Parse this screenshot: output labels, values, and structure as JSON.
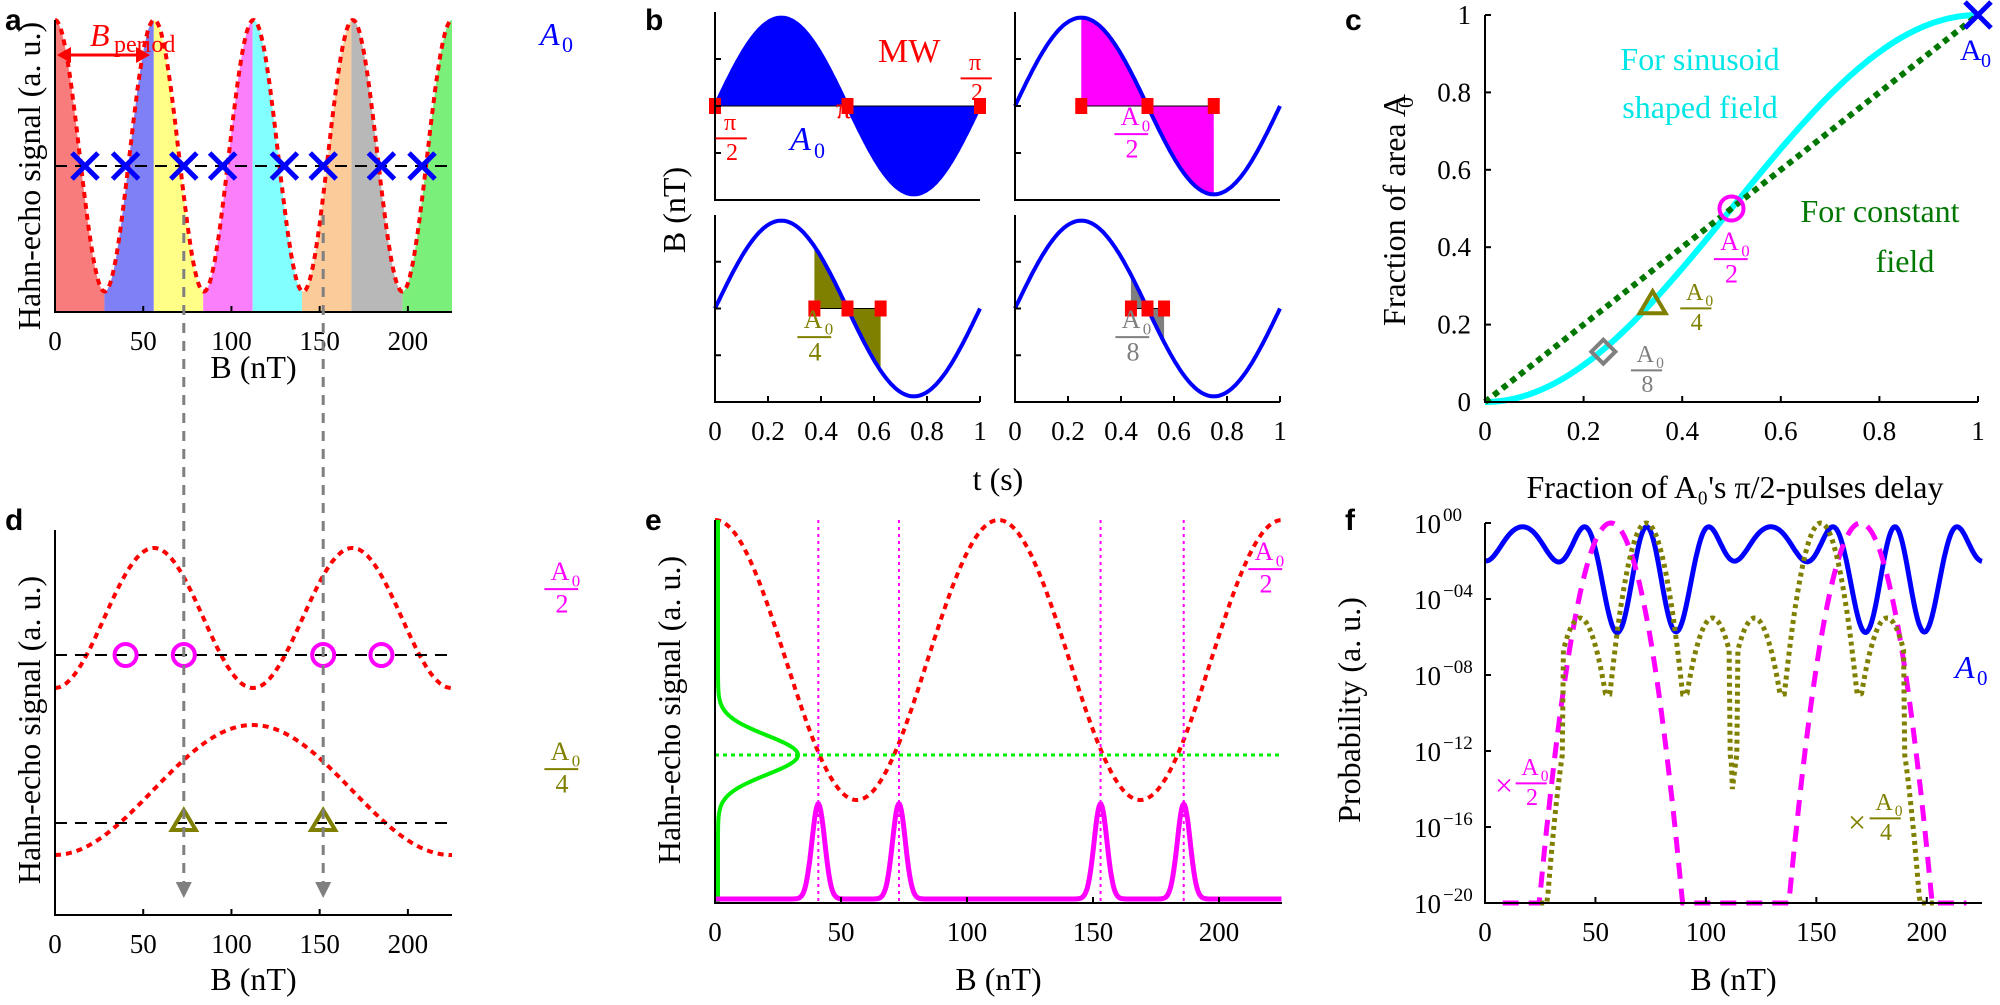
{
  "chart_data": [
    {
      "panel": "a",
      "type": "line",
      "xlabel": "B (nT)",
      "ylabel": "Hahn-echo signal (a. u.)",
      "xlim": [
        0,
        225
      ],
      "xticks": [
        "0",
        "50",
        "100",
        "150",
        "200"
      ],
      "period_label": "B",
      "period_subscript": "period",
      "curve_label": "A",
      "curve_label_sub": "0",
      "region_colors": [
        "#f87c7c",
        "#7f7ff6",
        "#ffff88",
        "#fb7ffb",
        "#82ffff",
        "#fbcb9a",
        "#b8b8b8",
        "#7af07a"
      ],
      "region_bounds": [
        0,
        28,
        56,
        84,
        112,
        140,
        168,
        197,
        225
      ],
      "crossings_x": [
        17,
        40,
        73,
        95,
        130,
        152,
        185,
        208
      ],
      "dashed_level": 0.5
    },
    {
      "panel": "b",
      "type": "line",
      "ylabel": "B (nT)",
      "xlabel": "t (s)",
      "xticks": [
        "0",
        "0.2",
        "0.4",
        "0.6",
        "0.8",
        "1"
      ],
      "mw_label": "MW",
      "pi_label": "π",
      "half_pi_num": "π",
      "half_pi_den": "2",
      "area_label": "A",
      "area_sub": "0",
      "subplots": [
        {
          "fraction_label": "A0",
          "num": "",
          "den": "",
          "start": 0.0,
          "end": 1.0,
          "pulses": [
            0,
            0.5,
            1
          ],
          "fill": "#0000ff"
        },
        {
          "fraction_label": "A0/2",
          "num": "A",
          "den": "2",
          "start": 0.25,
          "end": 0.75,
          "pulses": [
            0.25,
            0.5,
            0.75
          ],
          "fill": "#ff00ff"
        },
        {
          "fraction_label": "A0/4",
          "num": "A",
          "den": "4",
          "start": 0.375,
          "end": 0.625,
          "pulses": [
            0.375,
            0.5,
            0.625
          ],
          "fill": "#808000"
        },
        {
          "fraction_label": "A0/8",
          "num": "A",
          "den": "8",
          "start": 0.4375,
          "end": 0.5625,
          "pulses": [
            0.4375,
            0.5,
            0.5625
          ],
          "fill": "#7f7f7f"
        }
      ]
    },
    {
      "panel": "c",
      "type": "line",
      "xlabel": "Fraction of A₀'s π/2-pulses delay",
      "ylabel": "Fraction of area A",
      "ylabel_sub": "0",
      "xlim": [
        0,
        1
      ],
      "ylim": [
        0,
        1
      ],
      "xticks": [
        "0",
        "0.2",
        "0.4",
        "0.6",
        "0.8",
        "1"
      ],
      "yticks": [
        "0",
        "0.2",
        "0.4",
        "0.6",
        "0.8",
        "1"
      ],
      "sinusoid_label_1": "For sinusoid",
      "sinusoid_label_2": "shaped field",
      "constant_label_1": "For constant",
      "constant_label_2": "field",
      "markers": [
        {
          "name": "A0",
          "x": 1.0,
          "y": 1.0,
          "num": "A",
          "den": ""
        },
        {
          "name": "A0/2",
          "x": 0.5,
          "y": 0.5,
          "num": "A",
          "den": "2"
        },
        {
          "name": "A0/4",
          "x": 0.34,
          "y": 0.25,
          "num": "A",
          "den": "4"
        },
        {
          "name": "A0/8",
          "x": 0.24,
          "y": 0.13,
          "num": "A",
          "den": "8"
        }
      ]
    },
    {
      "panel": "d",
      "type": "line",
      "xlabel": "B (nT)",
      "ylabel": "Hahn-echo signal (a. u.)",
      "xlim": [
        0,
        225
      ],
      "xticks": [
        "0",
        "50",
        "100",
        "150",
        "200"
      ],
      "curves": [
        {
          "name": "A0/2",
          "num": "A",
          "den": "2",
          "crossings_x": [
            40,
            73,
            152,
            185
          ]
        },
        {
          "name": "A0/4",
          "num": "A",
          "den": "4",
          "crossings_x": [
            73,
            152
          ]
        }
      ]
    },
    {
      "panel": "e",
      "type": "line",
      "xlabel": "B (nT)",
      "ylabel": "Hahn-echo signal (a. u.)",
      "xlim": [
        0,
        225
      ],
      "xticks": [
        "0",
        "50",
        "100",
        "150",
        "200"
      ],
      "curve_num": "A",
      "curve_den": "2",
      "peaks_x": [
        41,
        73,
        153,
        186
      ]
    },
    {
      "panel": "f",
      "type": "line",
      "xlabel": "B (nT)",
      "ylabel": "Probability (a. u.)",
      "xlim": [
        0,
        225
      ],
      "yscale": "log",
      "yticks": [
        "10",
        "10",
        "10",
        "10",
        "10",
        "10"
      ],
      "ytick_exponents": [
        "00",
        "−04",
        "−08",
        "−12",
        "−16",
        "−20"
      ],
      "xticks": [
        "0",
        "50",
        "100",
        "150",
        "200"
      ],
      "series": [
        {
          "name": "A0",
          "label": "A",
          "sub": "0",
          "style": "solid",
          "color": "#0000ff"
        },
        {
          "name": "A0/2",
          "label": "×",
          "num": "A",
          "den": "2",
          "style": "dashed",
          "color": "#ff00ff"
        },
        {
          "name": "A0/4",
          "label": "×",
          "num": "A",
          "den": "4",
          "style": "dotted",
          "color": "#808000"
        }
      ]
    }
  ]
}
